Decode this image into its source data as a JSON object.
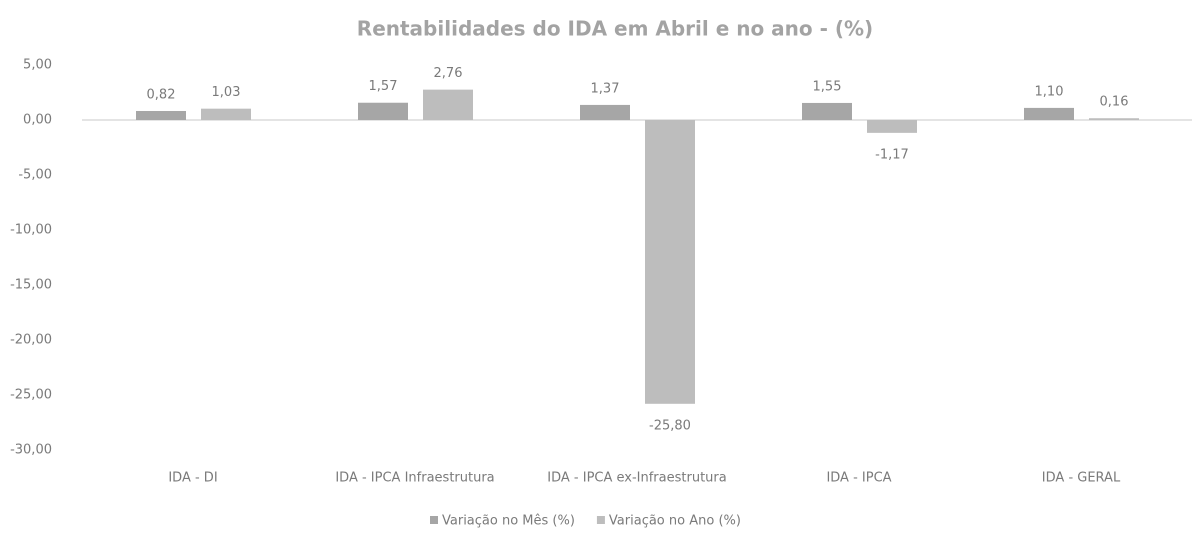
{
  "chart_data": {
    "type": "bar",
    "title": "Rentabilidades do IDA em Abril e no ano - (%)",
    "categories": [
      "IDA - DI",
      "IDA - IPCA Infraestrutura",
      "IDA - IPCA ex-Infraestrutura",
      "IDA - IPCA",
      "IDA - GERAL"
    ],
    "series": [
      {
        "name": "Variação no Mês (%)",
        "color": "#a6a6a6",
        "values": [
          0.82,
          1.57,
          1.37,
          1.55,
          1.1
        ],
        "value_labels": [
          "0,82",
          "1,57",
          "1,37",
          "1,55",
          "1,10"
        ]
      },
      {
        "name": "Variação no Ano (%)",
        "color": "#bdbdbd",
        "values": [
          1.03,
          2.76,
          -25.8,
          -1.17,
          0.16
        ],
        "value_labels": [
          "1,03",
          "2,76",
          "-25,80",
          "-1,17",
          "0,16"
        ]
      }
    ],
    "ylim": [
      -30,
      5
    ],
    "yticks": [
      {
        "value": 5,
        "label": "5,00"
      },
      {
        "value": 0,
        "label": "0,00"
      },
      {
        "value": -5,
        "label": "-5,00"
      },
      {
        "value": -10,
        "label": "-10,00"
      },
      {
        "value": -15,
        "label": "-15,00"
      },
      {
        "value": -20,
        "label": "-20,00"
      },
      {
        "value": -25,
        "label": "-25,00"
      },
      {
        "value": -30,
        "label": "-30,00"
      }
    ],
    "grid": false,
    "legend": "bottom"
  }
}
